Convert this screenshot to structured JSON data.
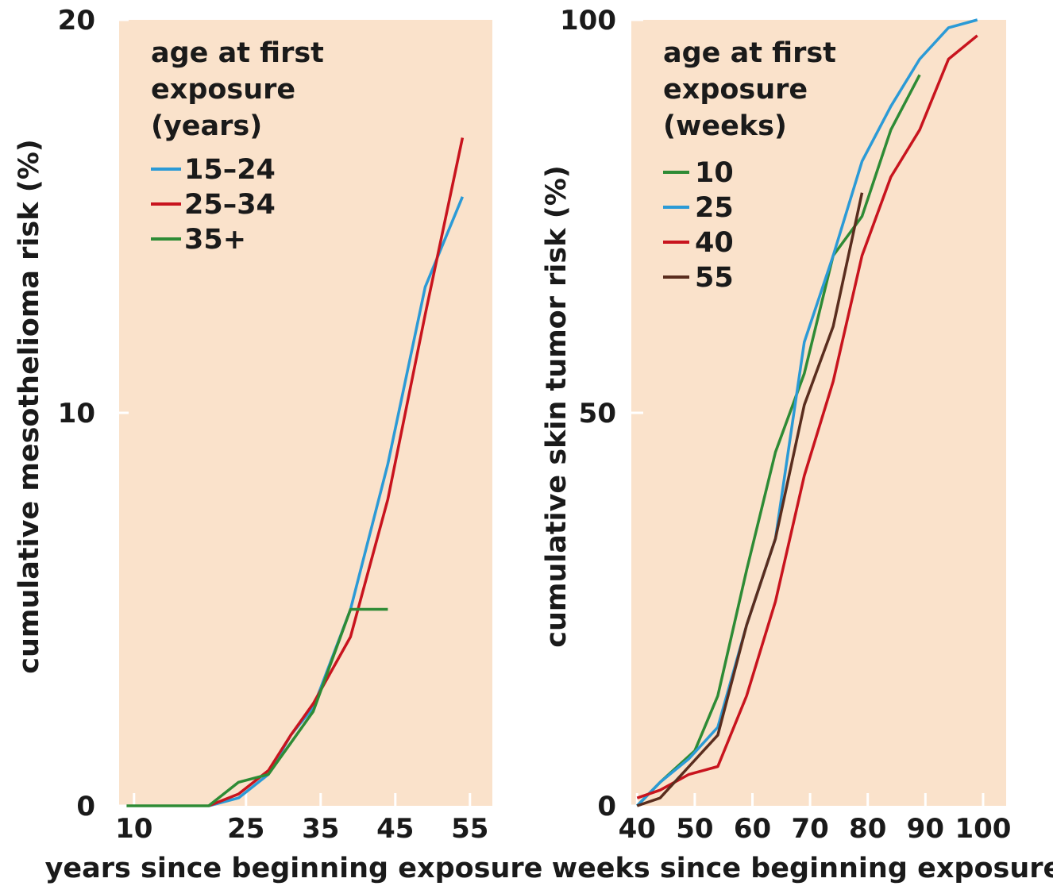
{
  "style": {
    "panel_background": "#fae2cb",
    "tick_color": "#ffffff",
    "text_color": "#1a1a1a"
  },
  "chart_data": [
    {
      "type": "line",
      "xlabel": "years since beginning exposure",
      "ylabel": "cumulative mesothelioma risk (%)",
      "xlim": [
        8,
        58
      ],
      "ylim": [
        0,
        20
      ],
      "xticks": [
        10,
        25,
        35,
        45,
        55
      ],
      "xtick_labels": [
        "10",
        "25",
        "35",
        "45",
        "55"
      ],
      "yticks": [
        0,
        10,
        20
      ],
      "ytick_labels": [
        "0",
        "10",
        "20"
      ],
      "grid": false,
      "legend_placement": "top-left",
      "legend_title_lines": [
        "age at first",
        "exposure",
        "(years)"
      ],
      "series": [
        {
          "name": "15–24",
          "color": "#2b9ad6",
          "x": [
            20,
            24,
            28,
            31,
            34,
            39,
            44,
            49,
            54
          ],
          "y": [
            0,
            0.2,
            0.8,
            1.8,
            2.5,
            5.0,
            8.7,
            13.2,
            15.5
          ]
        },
        {
          "name": "25–34",
          "color": "#c8141e",
          "x": [
            20,
            24,
            28,
            31,
            34,
            39,
            44,
            49,
            54
          ],
          "y": [
            0,
            0.3,
            0.9,
            1.8,
            2.6,
            4.3,
            7.8,
            12.5,
            17.0
          ]
        },
        {
          "name": "35+",
          "color": "#2e8b35",
          "x": [
            9,
            20,
            24,
            28,
            31,
            34,
            39,
            44
          ],
          "y": [
            0,
            0,
            0.6,
            0.8,
            1.6,
            2.4,
            5.0,
            5.0
          ]
        }
      ]
    },
    {
      "type": "line",
      "xlabel": "weeks since beginning exposure",
      "ylabel": "cumulative skin tumor risk (%)",
      "xlim": [
        39,
        104
      ],
      "ylim": [
        0,
        100
      ],
      "xticks": [
        40,
        50,
        60,
        70,
        80,
        90,
        100
      ],
      "xtick_labels": [
        "40",
        "50",
        "60",
        "70",
        "80",
        "90",
        "100"
      ],
      "yticks": [
        0,
        50,
        100
      ],
      "ytick_labels": [
        "0",
        "50",
        "100"
      ],
      "grid": false,
      "legend_placement": "top-left",
      "legend_title_lines": [
        "age at first",
        "exposure",
        "(weeks)"
      ],
      "series": [
        {
          "name": "10",
          "color": "#2e8b35",
          "x": [
            40,
            44,
            50,
            54,
            59,
            64,
            69,
            74,
            79,
            84,
            89
          ],
          "y": [
            0,
            3,
            7,
            14,
            30,
            45,
            55,
            70,
            75,
            86,
            93
          ]
        },
        {
          "name": "25",
          "color": "#2b9ad6",
          "x": [
            40,
            44,
            49,
            54,
            59,
            64,
            69,
            74,
            79,
            84,
            89,
            94,
            99
          ],
          "y": [
            0,
            3,
            6,
            10,
            23,
            34,
            59,
            70,
            82,
            89,
            95,
            99,
            100
          ]
        },
        {
          "name": "40",
          "color": "#c8141e",
          "x": [
            40,
            44,
            49,
            54,
            59,
            64,
            69,
            74,
            79,
            84,
            89,
            94,
            99
          ],
          "y": [
            1,
            2,
            4,
            5,
            14,
            26,
            42,
            54,
            70,
            80,
            86,
            95,
            98
          ]
        },
        {
          "name": "55",
          "color": "#5a2d1e",
          "x": [
            40,
            44,
            49,
            54,
            59,
            64,
            69,
            74,
            79
          ],
          "y": [
            0,
            1,
            5,
            9,
            23,
            34,
            51,
            61,
            78
          ]
        }
      ]
    }
  ]
}
